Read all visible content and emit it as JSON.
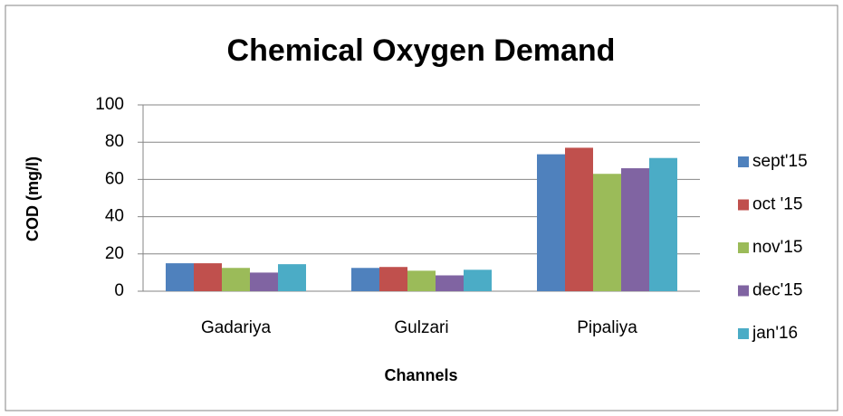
{
  "chart_data": {
    "type": "bar",
    "title": "Chemical Oxygen Demand",
    "x_label": "Channels",
    "y_label": "COD (mg/l)",
    "categories": [
      "Gadariya",
      "Gulzari",
      "Pipaliya"
    ],
    "series": [
      {
        "name": "sept'15",
        "color": "#4f81bd",
        "values": [
          15,
          12.5,
          73.5
        ]
      },
      {
        "name": "oct '15",
        "color": "#c0504d",
        "values": [
          15,
          13,
          77
        ]
      },
      {
        "name": "nov'15",
        "color": "#9bbb59",
        "values": [
          12.5,
          11,
          63
        ]
      },
      {
        "name": "dec'15",
        "color": "#8064a2",
        "values": [
          10,
          8.5,
          66
        ]
      },
      {
        "name": "jan'16",
        "color": "#4bacc6",
        "values": [
          14.5,
          11.5,
          71.5
        ]
      }
    ],
    "ylim": [
      0,
      100
    ],
    "yticks": [
      0,
      20,
      40,
      60,
      80,
      100
    ],
    "grid": true,
    "legend": "right"
  }
}
